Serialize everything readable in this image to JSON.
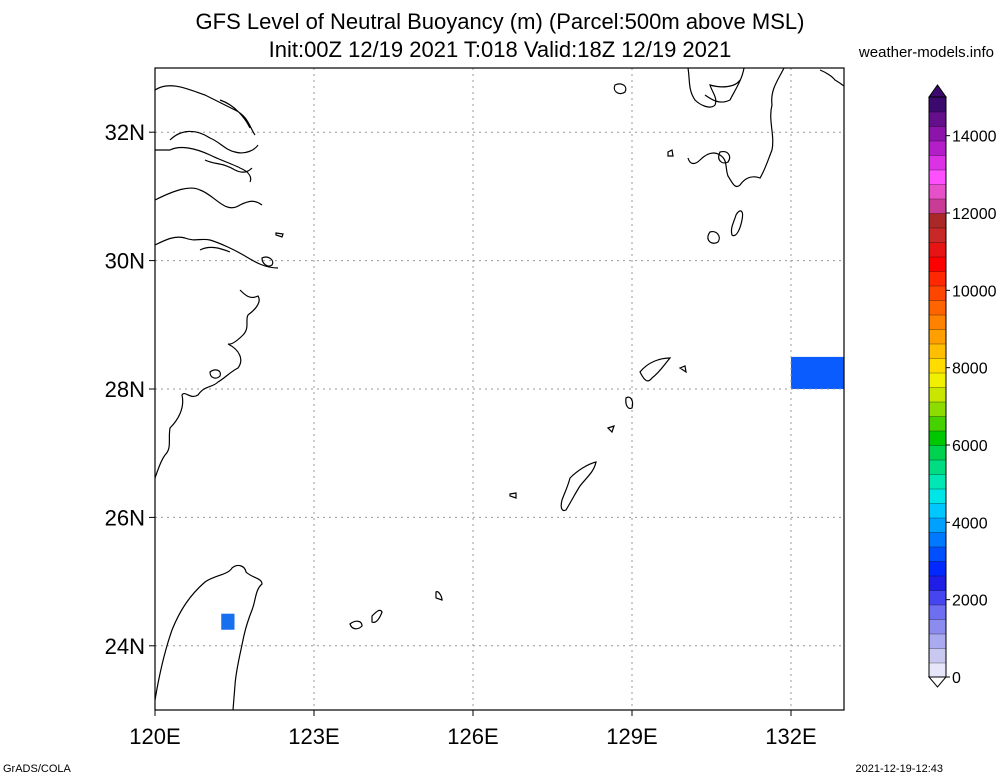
{
  "title_line1": "GFS Level of Neutral Buoyancy (m) (Parcel:500m above MSL)",
  "title_line2": "Init:00Z 12/19 2021 T:018 Valid:18Z 12/19 2021",
  "site": "weather-models.info",
  "footer_left": "GrADS/COLA",
  "footer_right": "2021-12-19-12:43",
  "map": {
    "lon_range": [
      120,
      133
    ],
    "lat_range": [
      23,
      33
    ],
    "lon_ticks": [
      "120E",
      "123E",
      "126E",
      "129E",
      "132E"
    ],
    "lat_ticks": [
      "24N",
      "26N",
      "28N",
      "30N",
      "32N"
    ],
    "grid": "dotted",
    "colors": {
      "coast": "#000000",
      "grid": "#999999"
    },
    "shaded_cells": [
      {
        "lon": [
          132.0,
          133.0
        ],
        "lat": [
          28.0,
          28.5
        ],
        "value": 2100,
        "color": "#0a5cff"
      },
      {
        "lon": [
          121.25,
          121.5
        ],
        "lat": [
          24.25,
          24.5
        ],
        "value": 2300,
        "color": "#1870f0"
      }
    ]
  },
  "colorbar": {
    "labels": [
      "0",
      "2000",
      "4000",
      "6000",
      "8000",
      "10000",
      "12000",
      "14000"
    ],
    "min": 0,
    "max": 15000,
    "colors": [
      "#e6e6fa",
      "#c8c8f0",
      "#aaaaf0",
      "#8c8cf0",
      "#6e6ef0",
      "#4646f0",
      "#1e1ee6",
      "#0028ff",
      "#0050ff",
      "#0078ff",
      "#00a0ff",
      "#00c8ff",
      "#00e6e6",
      "#00e6b4",
      "#00dc82",
      "#00d250",
      "#00c800",
      "#46d200",
      "#8cdc00",
      "#c8e600",
      "#f0f000",
      "#ffdc00",
      "#ffbe00",
      "#ffa000",
      "#ff8200",
      "#ff6400",
      "#ff4600",
      "#ff2800",
      "#ff0000",
      "#e61414",
      "#c82828",
      "#aa2828",
      "#c83c96",
      "#e650c8",
      "#ff50ff",
      "#dc32e6",
      "#b41ec8",
      "#8c14aa",
      "#64108c",
      "#3c0a6e"
    ]
  }
}
